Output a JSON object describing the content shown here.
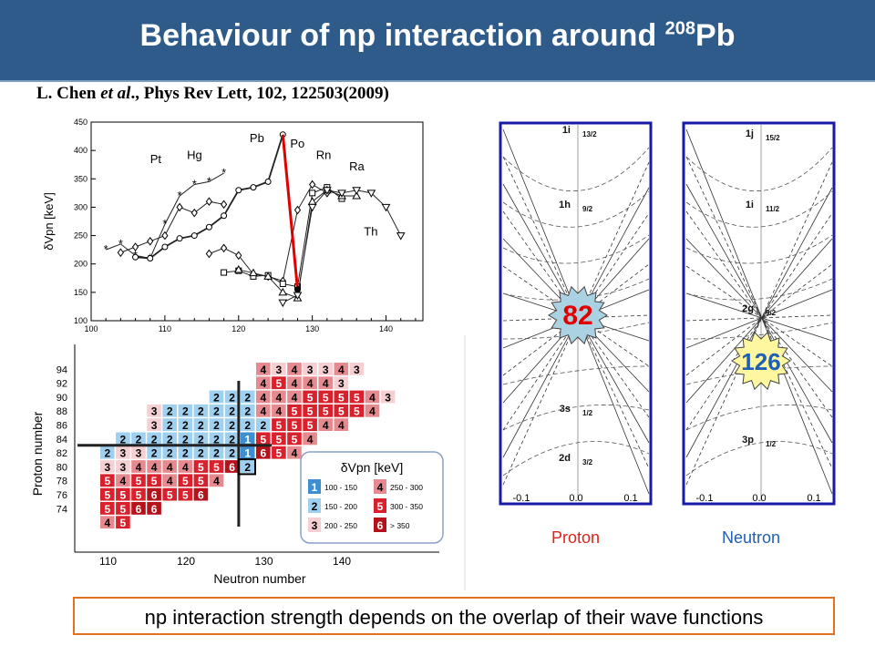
{
  "slide": {
    "title_main": "Behaviour of np interaction around ",
    "title_sup": "208",
    "title_tail": "Pb",
    "citation_pre": "L. Chen ",
    "citation_italic": "et al",
    "citation_post": "., Phys Rev Lett, 102, 122503(2009)",
    "footer": "np interaction strength depends on the overlap of their wave functions",
    "caption_left": "Proton",
    "caption_right": "Neutron"
  },
  "colors": {
    "title_bg": "#2f5b8a",
    "accent_red": "#e00000",
    "box_border": "#e2701e",
    "panel_border": "#1a1aa8"
  },
  "chart_data": [
    {
      "type": "line",
      "ylabel": "δVpn [keV]",
      "xlim": [
        100,
        145
      ],
      "ylim": [
        100,
        450
      ],
      "xticks": [
        100,
        110,
        120,
        130,
        140
      ],
      "yticks": [
        100,
        150,
        200,
        250,
        300,
        350,
        400,
        450
      ],
      "series": [
        {
          "name": "Pt",
          "x": [
            102,
            104,
            106,
            108,
            110,
            112,
            114,
            116,
            118
          ],
          "y": [
            225,
            235,
            215,
            210,
            270,
            320,
            340,
            345,
            360
          ]
        },
        {
          "name": "Hg",
          "x": [
            104,
            106,
            108,
            110,
            112,
            114,
            116,
            118
          ],
          "y": [
            220,
            230,
            240,
            250,
            300,
            290,
            310,
            305
          ]
        },
        {
          "name": "Pb",
          "x": [
            106,
            108,
            110,
            112,
            114,
            116,
            118,
            120,
            122,
            124,
            126
          ],
          "y": [
            212,
            210,
            230,
            245,
            250,
            265,
            285,
            330,
            335,
            345,
            428
          ]
        },
        {
          "name": "Po",
          "x": [
            116,
            118,
            120,
            122,
            124,
            126,
            128,
            130,
            132
          ],
          "y": [
            218,
            228,
            215,
            182,
            178,
            170,
            295,
            340,
            325
          ]
        },
        {
          "name": "Rn",
          "x": [
            118,
            120,
            122,
            124,
            126,
            128,
            130,
            132,
            134
          ],
          "y": [
            185,
            188,
            178,
            180,
            165,
            160,
            325,
            335,
            315
          ]
        },
        {
          "name": "Ra",
          "x": [
            120,
            122,
            124,
            126,
            128,
            130,
            132,
            134,
            136
          ],
          "y": [
            190,
            184,
            178,
            150,
            140,
            310,
            330,
            320,
            320
          ]
        },
        {
          "name": "Th",
          "x": [
            126,
            128,
            130,
            132,
            134,
            136,
            138,
            140,
            142
          ],
          "y": [
            132,
            145,
            300,
            330,
            325,
            330,
            325,
            300,
            250
          ]
        }
      ],
      "highlight": {
        "x": [
          126,
          128
        ],
        "y": [
          428,
          155
        ]
      }
    },
    {
      "type": "heatmap",
      "xlabel": "Neutron number",
      "ylabel": "Proton number",
      "xticks": [
        110,
        120,
        130,
        140
      ],
      "yticks": [
        74,
        76,
        78,
        80,
        82,
        84,
        86,
        88,
        90,
        92,
        94
      ],
      "legend_title": "δVpn [keV]",
      "legend": [
        {
          "key": "1",
          "range": "100 - 150"
        },
        {
          "key": "2",
          "range": "150 - 200"
        },
        {
          "key": "3",
          "range": "200 - 250"
        },
        {
          "key": "4",
          "range": "250 - 300"
        },
        {
          "key": "5",
          "range": "300 - 350"
        },
        {
          "key": "6",
          "range": "> 350"
        }
      ],
      "rows": [
        {
          "z": 94,
          "start": 130,
          "cells": [
            "4",
            "3",
            "4",
            "3",
            "3",
            "4",
            "3"
          ]
        },
        {
          "z": 92,
          "start": 130,
          "cells": [
            "4",
            "5",
            "4",
            "4",
            "4",
            "3"
          ]
        },
        {
          "z": 90,
          "start": 124,
          "cells": [
            "2",
            "2",
            "2",
            "4",
            "4",
            "4",
            "5",
            "5",
            "5",
            "5",
            "4",
            "3"
          ]
        },
        {
          "z": 88,
          "start": 116,
          "cells": [
            "3",
            "2",
            "2",
            "2",
            "2",
            "2",
            "2",
            "4",
            "4",
            "5",
            "5",
            "5",
            "5",
            "5",
            "4"
          ]
        },
        {
          "z": 86,
          "start": 116,
          "cells": [
            "3",
            "2",
            "2",
            "2",
            "2",
            "2",
            "2",
            "2",
            "5",
            "5",
            "5",
            "4",
            "4"
          ]
        },
        {
          "z": 84,
          "start": 112,
          "cells": [
            "2",
            "2",
            "2",
            "2",
            "2",
            "2",
            "2",
            "2",
            "1",
            "5",
            "5",
            "5",
            "4"
          ]
        },
        {
          "z": 82,
          "start": 110,
          "cells": [
            "2",
            "3",
            "3",
            "2",
            "2",
            "2",
            "2",
            "2",
            "2",
            "1",
            "6",
            "5",
            "4"
          ]
        },
        {
          "z": 80,
          "start": 110,
          "cells": [
            "3",
            "3",
            "4",
            "4",
            "4",
            "4",
            "5",
            "5",
            "6",
            "2"
          ]
        },
        {
          "z": 78,
          "start": 110,
          "cells": [
            "5",
            "4",
            "5",
            "5",
            "4",
            "5",
            "5",
            "4"
          ]
        },
        {
          "z": 76,
          "start": 110,
          "cells": [
            "5",
            "5",
            "5",
            "6",
            "5",
            "5",
            "6"
          ]
        },
        {
          "z": 74,
          "start": 110,
          "cells": [
            "5",
            "5",
            "6",
            "6"
          ]
        },
        {
          "z": 72,
          "start": 110,
          "cells": [
            "4",
            "5"
          ]
        }
      ]
    },
    {
      "type": "line",
      "title": "Proton",
      "xticks": [
        "-0.1",
        "0.0",
        "0.1"
      ],
      "labels": [
        {
          "text": "1i",
          "sub": "13/2"
        },
        {
          "text": "1h",
          "sub": "9/2"
        },
        {
          "text": "3s",
          "sub": "1/2"
        },
        {
          "text": "2d",
          "sub": "3/2"
        }
      ],
      "magic": "82"
    },
    {
      "type": "line",
      "title": "Neutron",
      "xticks": [
        "-0.1",
        "0.0",
        "0.1"
      ],
      "labels": [
        {
          "text": "1j",
          "sub": "15/2"
        },
        {
          "text": "1i",
          "sub": "11/2"
        },
        {
          "text": "2g",
          "sub": "9/2"
        },
        {
          "text": "3p",
          "sub": "1/2"
        }
      ],
      "magic": "126"
    }
  ]
}
